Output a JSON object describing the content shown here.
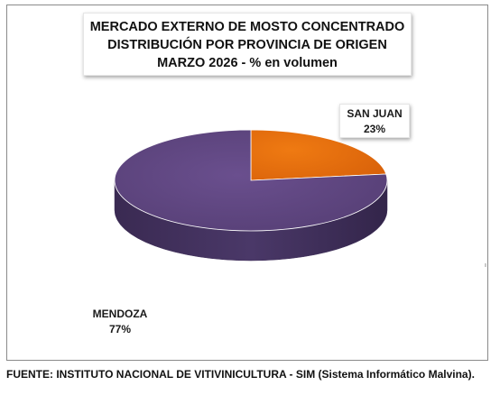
{
  "title": {
    "line1": "MERCADO EXTERNO DE MOSTO CONCENTRADO",
    "line2": "DISTRIBUCIÓN POR PROVINCIA DE ORIGEN",
    "line3": "MARZO 2026 - % en volumen"
  },
  "footer": "FUENTE: INSTITUTO NACIONAL DE VITIVINICULTURA - SIM (Sistema Informático Malvina).",
  "chart_data": {
    "type": "pie",
    "title": "MERCADO EXTERNO DE MOSTO CONCENTRADO DISTRIBUCIÓN POR PROVINCIA DE ORIGEN MARZO 2026 - % en volumen",
    "slices": [
      {
        "label": "SAN JUAN",
        "value": 23,
        "display": "23%",
        "color": "#e26a0a",
        "side_color": "#a84d05"
      },
      {
        "label": "MENDOZA",
        "value": 77,
        "display": "77%",
        "color": "#5e4580",
        "side_color": "#40305a"
      }
    ],
    "style": "3d"
  }
}
